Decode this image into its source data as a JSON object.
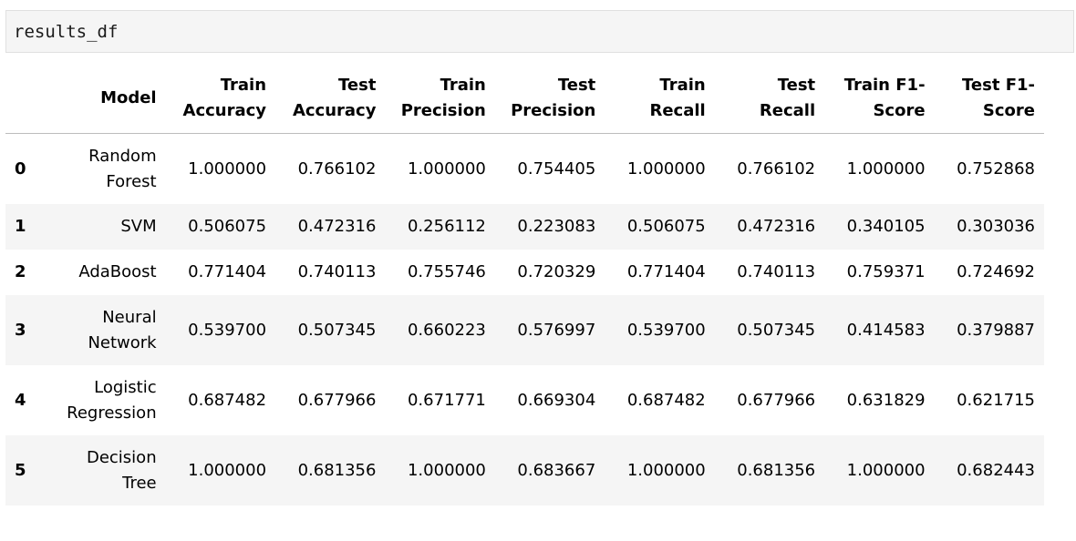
{
  "code_cell": {
    "source": "results_df"
  },
  "table": {
    "columns": [
      "",
      "Model",
      "Train Accuracy",
      "Test Accuracy",
      "Train Precision",
      "Test Precision",
      "Train Recall",
      "Test Recall",
      "Train F1-Score",
      "Test F1-Score"
    ],
    "rows": [
      {
        "index": "0",
        "model": "Random Forest",
        "values": [
          "1.000000",
          "0.766102",
          "1.000000",
          "0.754405",
          "1.000000",
          "0.766102",
          "1.000000",
          "0.752868"
        ]
      },
      {
        "index": "1",
        "model": "SVM",
        "values": [
          "0.506075",
          "0.472316",
          "0.256112",
          "0.223083",
          "0.506075",
          "0.472316",
          "0.340105",
          "0.303036"
        ]
      },
      {
        "index": "2",
        "model": "AdaBoost",
        "values": [
          "0.771404",
          "0.740113",
          "0.755746",
          "0.720329",
          "0.771404",
          "0.740113",
          "0.759371",
          "0.724692"
        ]
      },
      {
        "index": "3",
        "model": "Neural Network",
        "values": [
          "0.539700",
          "0.507345",
          "0.660223",
          "0.576997",
          "0.539700",
          "0.507345",
          "0.414583",
          "0.379887"
        ]
      },
      {
        "index": "4",
        "model": "Logistic Regression",
        "values": [
          "0.687482",
          "0.677966",
          "0.671771",
          "0.669304",
          "0.687482",
          "0.677966",
          "0.631829",
          "0.621715"
        ]
      },
      {
        "index": "5",
        "model": "Decision Tree",
        "values": [
          "1.000000",
          "0.681356",
          "1.000000",
          "0.683667",
          "1.000000",
          "0.681356",
          "1.000000",
          "0.682443"
        ]
      }
    ]
  }
}
